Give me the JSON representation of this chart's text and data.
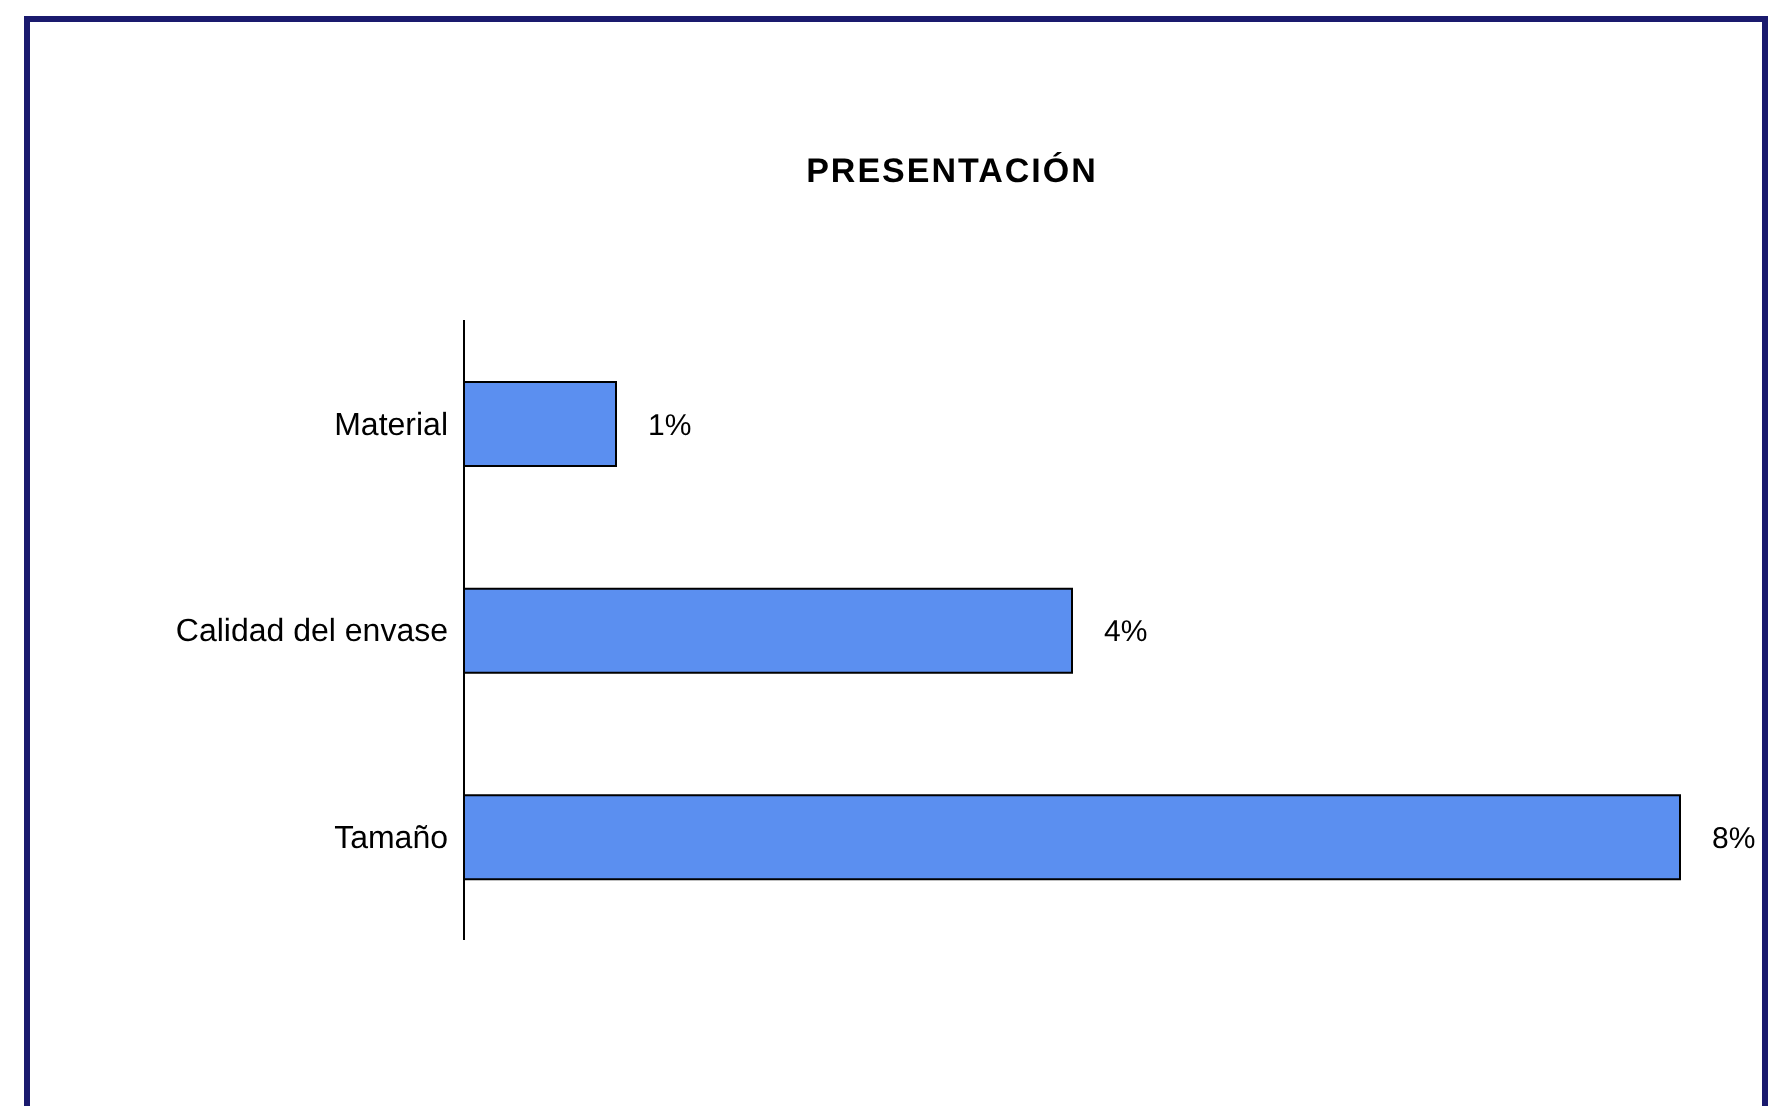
{
  "chart_data": {
    "type": "bar",
    "orientation": "horizontal",
    "title": "PRESENTACIÓN",
    "categories": [
      "Material",
      "Calidad del envase",
      "Tamaño"
    ],
    "values": [
      1,
      4,
      8
    ],
    "value_labels": [
      "1%",
      "4%",
      "8%"
    ],
    "color": "#5b8ff0",
    "grid": false,
    "legend": false
  }
}
